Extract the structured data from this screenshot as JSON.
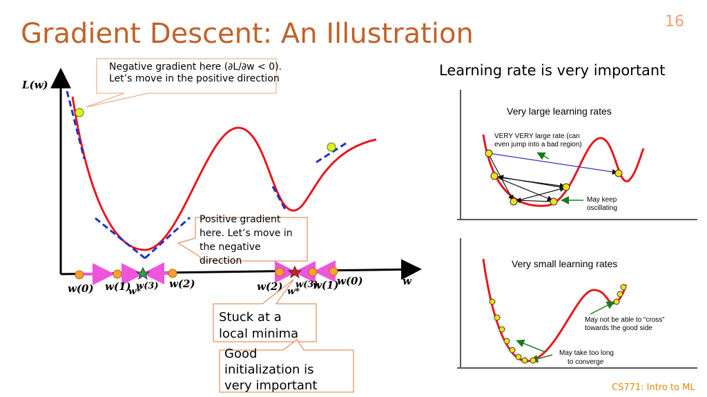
{
  "header": {
    "title": "Gradient Descent: An Illustration",
    "page_number": "16"
  },
  "left_diagram": {
    "y_axis_label": "L(w)",
    "x_axis_label": "w",
    "callout_negative": [
      "Negative gradient here (∂L/∂w < 0).",
      "Let’s move in the positive direction"
    ],
    "callout_positive": [
      "Positive gradient",
      "here. Let’s move in",
      "the negative",
      "direction"
    ],
    "callout_stuck": [
      "Stuck at a",
      "local minima"
    ],
    "callout_init": [
      "Good",
      "initialization is",
      "very important"
    ],
    "left_labels": [
      "w(0)",
      "w(1)",
      "w(3)",
      "w*",
      "w(2)"
    ],
    "right_labels": [
      "w(2)",
      "w(3)",
      "w*",
      "w(1)",
      "w(0)"
    ]
  },
  "right_panel": {
    "heading": "Learning rate is very important",
    "large": {
      "title": "Very large learning rates",
      "note_jump": [
        "VERY VERY large rate (can",
        "even jump into a bad region)"
      ],
      "note_osc": [
        "May keep",
        "oscillating"
      ]
    },
    "small": {
      "title": "Very small learning rates",
      "note_cross": [
        "May not be able to “cross”",
        "towards the good side"
      ],
      "note_slow": [
        "May take too long",
        "to converge"
      ]
    }
  },
  "footer": {
    "course": "CS771: Intro to ML"
  }
}
